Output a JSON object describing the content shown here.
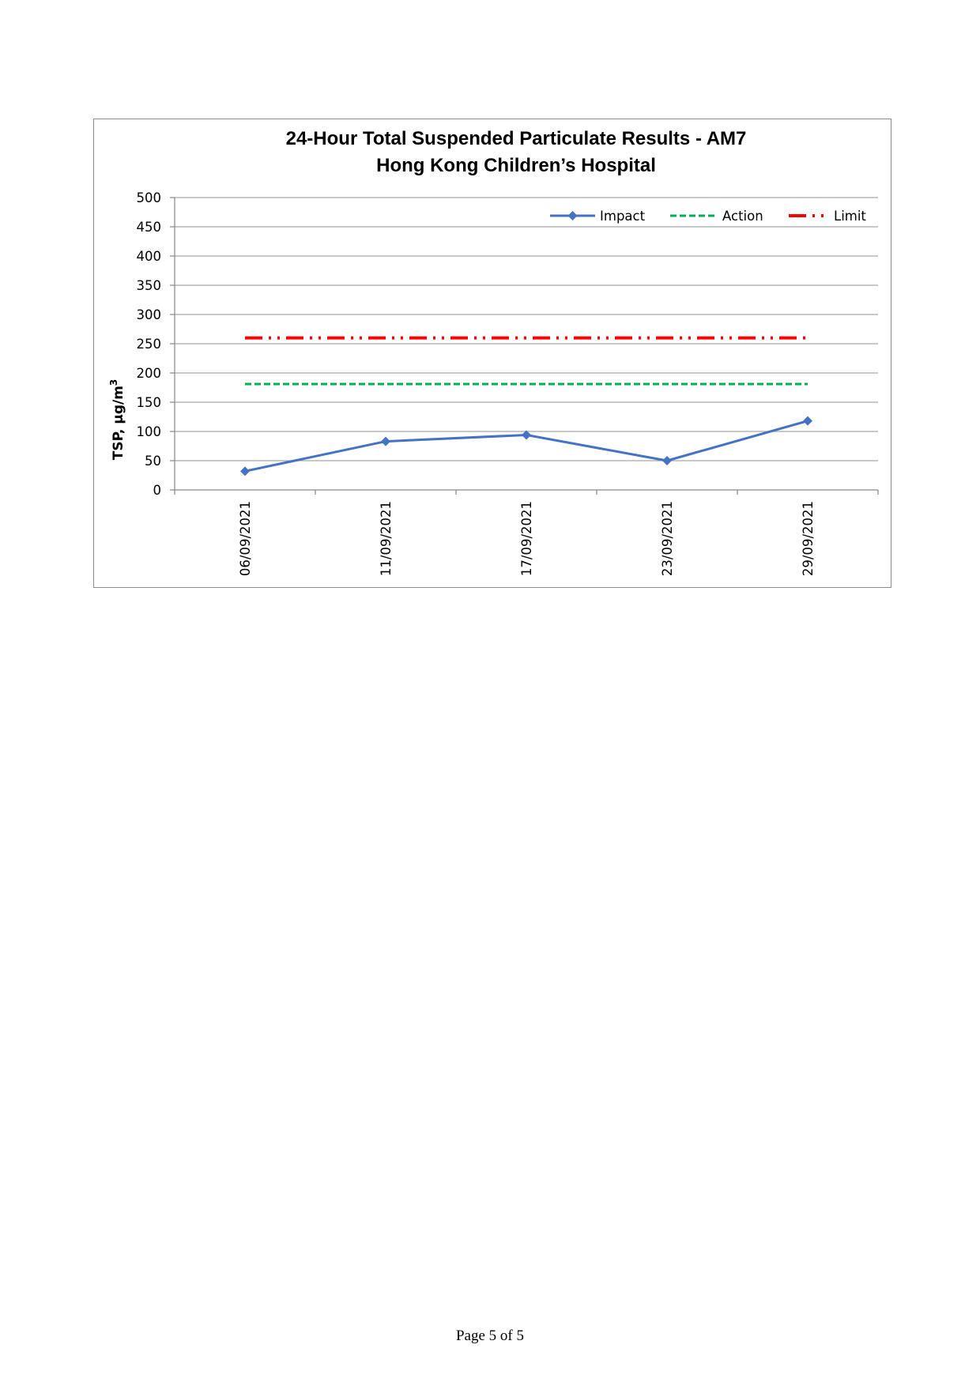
{
  "chart_data": {
    "type": "line",
    "title": "24-Hour Total Suspended Particulate Results - AM7",
    "subtitle": "Hong Kong Children’s Hospital",
    "xlabel": "",
    "ylabel": "TSP, µg/m",
    "ylabel_superscript": "3",
    "ylim": [
      0,
      500
    ],
    "yticks": [
      0,
      50,
      100,
      150,
      200,
      250,
      300,
      350,
      400,
      450,
      500
    ],
    "categories": [
      "06/09/2021",
      "11/09/2021",
      "17/09/2021",
      "23/09/2021",
      "29/09/2021"
    ],
    "grid": true,
    "legend_position": "top-right",
    "series": [
      {
        "name": "Impact",
        "values": [
          32,
          83,
          94,
          50,
          118
        ],
        "color": "#4472c4",
        "style": "solid-diamond"
      },
      {
        "name": "Action",
        "values": [
          181,
          181,
          181,
          181,
          181
        ],
        "color": "#00b050",
        "style": "dashed"
      },
      {
        "name": "Limit",
        "values": [
          260,
          260,
          260,
          260,
          260
        ],
        "color": "#ff0000",
        "style": "dash-dot-dot"
      }
    ]
  },
  "footer": {
    "page_text": "Page 5 of 5"
  }
}
